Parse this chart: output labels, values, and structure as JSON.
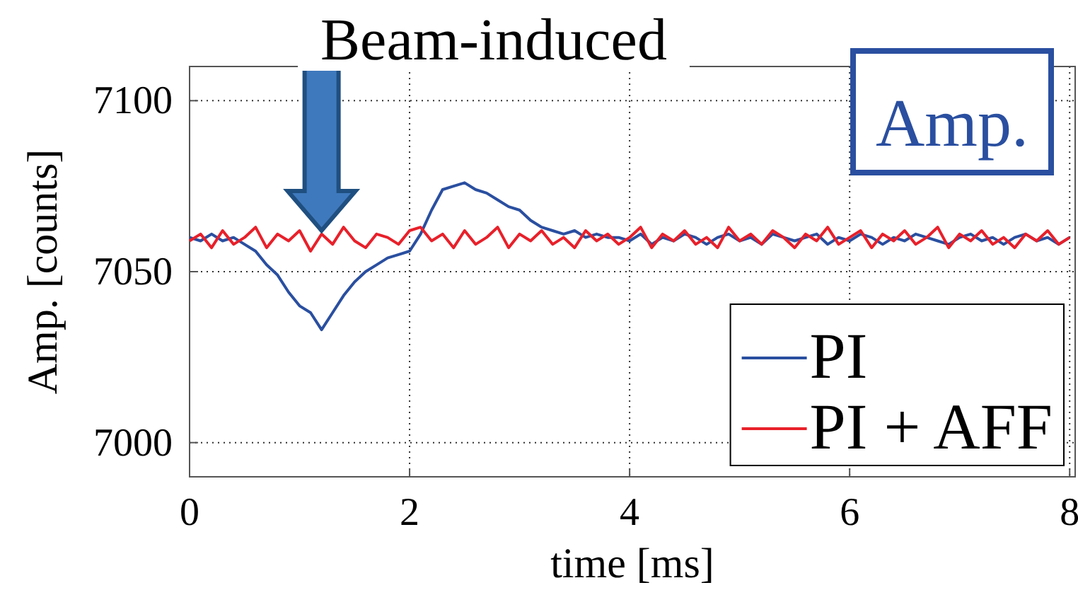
{
  "chart_data": {
    "type": "line",
    "xlabel": "time [ms]",
    "ylabel": "Amp. [counts]",
    "xlim": [
      0,
      8.05
    ],
    "ylim": [
      6990,
      7110
    ],
    "xticks": [
      0,
      2,
      4,
      6,
      8
    ],
    "yticks": [
      7000,
      7050,
      7100
    ],
    "grid": true,
    "legend": "bottom right",
    "line_style": "solid",
    "marker": "none",
    "annotations": [
      {
        "text": "Beam-induced",
        "x": 1.2,
        "y": 7062
      },
      "Amp."
    ],
    "x": [
      0,
      0.1,
      0.2,
      0.3,
      0.4,
      0.5,
      0.6,
      0.7,
      0.8,
      0.9,
      1,
      1.1,
      1.2,
      1.3,
      1.4,
      1.5,
      1.6,
      1.7,
      1.8,
      1.9,
      2,
      2.1,
      2.2,
      2.3,
      2.4,
      2.5,
      2.6,
      2.7,
      2.8,
      2.9,
      3,
      3.1,
      3.2,
      3.3,
      3.4,
      3.5,
      3.6,
      3.7,
      3.8,
      3.9,
      4,
      4.1,
      4.2,
      4.3,
      4.4,
      4.5,
      4.6,
      4.7,
      4.8,
      4.9,
      5,
      5.1,
      5.2,
      5.3,
      5.4,
      5.5,
      5.6,
      5.7,
      5.8,
      5.9,
      6,
      6.1,
      6.2,
      6.3,
      6.4,
      6.5,
      6.6,
      6.7,
      6.8,
      6.9,
      7,
      7.1,
      7.2,
      7.3,
      7.4,
      7.5,
      7.6,
      7.7,
      7.8,
      7.9,
      8
    ],
    "series": [
      {
        "name": "PI",
        "color": "#2a4fa0",
        "values": [
          7060,
          7059,
          7061,
          7059,
          7060,
          7058,
          7056,
          7052,
          7049,
          7044,
          7040,
          7038,
          7033,
          7038,
          7043,
          7047,
          7050,
          7052,
          7054,
          7055,
          7056,
          7061,
          7068,
          7074,
          7075,
          7076,
          7074,
          7073,
          7071,
          7069,
          7068,
          7065,
          7063,
          7062,
          7061,
          7062,
          7060,
          7061,
          7060,
          7060,
          7059,
          7061,
          7058,
          7060,
          7059,
          7061,
          7060,
          7058,
          7060,
          7061,
          7059,
          7060,
          7058,
          7061,
          7060,
          7059,
          7060,
          7061,
          7058,
          7060,
          7059,
          7061,
          7060,
          7058,
          7060,
          7059,
          7061,
          7060,
          7059,
          7058,
          7060,
          7061,
          7059,
          7060,
          7058,
          7060,
          7061,
          7059,
          7060,
          7058,
          7060
        ]
      },
      {
        "name": "PI + AFF",
        "color": "#e8202a",
        "values": [
          7059,
          7061,
          7057,
          7062,
          7058,
          7060,
          7063,
          7057,
          7061,
          7059,
          7062,
          7056,
          7061,
          7058,
          7063,
          7059,
          7057,
          7061,
          7060,
          7058,
          7062,
          7063,
          7059,
          7061,
          7057,
          7062,
          7058,
          7060,
          7063,
          7057,
          7061,
          7059,
          7062,
          7058,
          7060,
          7057,
          7062,
          7059,
          7061,
          7058,
          7060,
          7063,
          7057,
          7061,
          7059,
          7062,
          7058,
          7060,
          7057,
          7063,
          7059,
          7061,
          7058,
          7062,
          7060,
          7057,
          7061,
          7059,
          7063,
          7058,
          7060,
          7062,
          7057,
          7061,
          7059,
          7062,
          7058,
          7060,
          7063,
          7057,
          7061,
          7059,
          7062,
          7058,
          7060,
          7057,
          7061,
          7059,
          7062,
          7058,
          7060
        ]
      }
    ]
  }
}
